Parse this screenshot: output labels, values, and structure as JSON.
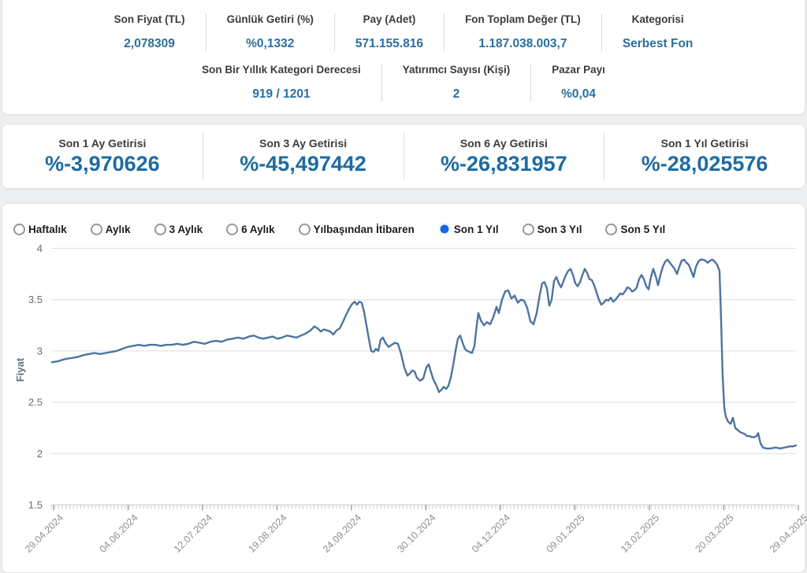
{
  "stats": {
    "row1": [
      {
        "label": "Son Fiyat (TL)",
        "value": "2,078309"
      },
      {
        "label": "Günlük Getiri (%)",
        "value": "%0,1332"
      },
      {
        "label": "Pay (Adet)",
        "value": "571.155.816"
      },
      {
        "label": "Fon Toplam Değer (TL)",
        "value": "1.187.038.003,7"
      },
      {
        "label": "Kategorisi",
        "value": "Serbest Fon"
      }
    ],
    "row2": [
      {
        "label": "Son Bir Yıllık Kategori Derecesi",
        "value": "919 / 1201"
      },
      {
        "label": "Yatırımcı Sayısı (Kişi)",
        "value": "2"
      },
      {
        "label": "Pazar Payı",
        "value": "%0,04"
      }
    ]
  },
  "returns": [
    {
      "label": "Son 1 Ay Getirisi",
      "value": "%-3,970626"
    },
    {
      "label": "Son 3 Ay Getirisi",
      "value": "%-45,497442"
    },
    {
      "label": "Son 6 Ay Getirisi",
      "value": "%-26,831957"
    },
    {
      "label": "Son 1 Yıl Getirisi",
      "value": "%-28,025576"
    }
  ],
  "periods": [
    {
      "label": "Haftalık",
      "selected": false
    },
    {
      "label": "Aylık",
      "selected": false
    },
    {
      "label": "3 Aylık",
      "selected": false
    },
    {
      "label": "6 Aylık",
      "selected": false
    },
    {
      "label": "Yılbaşından İtibaren",
      "selected": false
    },
    {
      "label": "Son 1 Yıl",
      "selected": true
    },
    {
      "label": "Son 3 Yıl",
      "selected": false
    },
    {
      "label": "Son 5 Yıl",
      "selected": false
    }
  ],
  "colors": {
    "accent_value": "#2a6f9e",
    "returns_value": "#1e6ba1",
    "radio_selected": "#1569e6",
    "line": "#4d74a1",
    "grid": "#dcdee0",
    "axis_line": "#c9ced3",
    "y_tick_text": "#6f6e6c",
    "x_label_text": "#8e8e8e",
    "ylabel_text": "#5d7283"
  },
  "chart_data": {
    "type": "line",
    "title": "",
    "xlabel": "",
    "ylabel": "Fiyat",
    "ylim": [
      1.5,
      4
    ],
    "y_ticks": [
      "4",
      "3.5",
      "3",
      "2.5",
      "2",
      "1.5"
    ],
    "y_tick_values": [
      4,
      3.5,
      3,
      2.5,
      2,
      1.5
    ],
    "grid": true,
    "legend": "none",
    "x_tick_labels": [
      "29.04.2024",
      "04.06.2024",
      "12.07.2024",
      "19.08.2024",
      "24.09.2024",
      "30.10.2024",
      "04.12.2024",
      "09.01.2025",
      "13.02.2025",
      "20.03.2025",
      "29.04.2025"
    ],
    "series_name": "Fiyat",
    "points": [
      [
        66,
        2.89
      ],
      [
        74,
        2.9
      ],
      [
        82,
        2.92
      ],
      [
        90,
        2.93
      ],
      [
        98,
        2.94
      ],
      [
        106,
        2.96
      ],
      [
        113,
        2.97
      ],
      [
        120,
        2.98
      ],
      [
        127,
        2.97
      ],
      [
        134,
        2.98
      ],
      [
        141,
        2.99
      ],
      [
        148,
        3.0
      ],
      [
        155,
        3.02
      ],
      [
        162,
        3.04
      ],
      [
        169,
        3.05
      ],
      [
        176,
        3.06
      ],
      [
        183,
        3.05
      ],
      [
        190,
        3.06
      ],
      [
        197,
        3.06
      ],
      [
        204,
        3.05
      ],
      [
        211,
        3.06
      ],
      [
        218,
        3.06
      ],
      [
        225,
        3.07
      ],
      [
        232,
        3.06
      ],
      [
        239,
        3.07
      ],
      [
        246,
        3.09
      ],
      [
        253,
        3.08
      ],
      [
        260,
        3.07
      ],
      [
        267,
        3.09
      ],
      [
        274,
        3.1
      ],
      [
        281,
        3.09
      ],
      [
        288,
        3.11
      ],
      [
        295,
        3.12
      ],
      [
        302,
        3.13
      ],
      [
        309,
        3.12
      ],
      [
        316,
        3.14
      ],
      [
        322,
        3.15
      ],
      [
        328,
        3.13
      ],
      [
        334,
        3.12
      ],
      [
        340,
        3.13
      ],
      [
        346,
        3.14
      ],
      [
        352,
        3.12
      ],
      [
        358,
        3.13
      ],
      [
        364,
        3.15
      ],
      [
        370,
        3.14
      ],
      [
        376,
        3.13
      ],
      [
        382,
        3.15
      ],
      [
        388,
        3.17
      ],
      [
        394,
        3.2
      ],
      [
        399,
        3.24
      ],
      [
        403,
        3.22
      ],
      [
        407,
        3.19
      ],
      [
        411,
        3.21
      ],
      [
        415,
        3.2
      ],
      [
        419,
        3.19
      ],
      [
        423,
        3.16
      ],
      [
        427,
        3.2
      ],
      [
        431,
        3.22
      ],
      [
        435,
        3.28
      ],
      [
        439,
        3.35
      ],
      [
        443,
        3.41
      ],
      [
        447,
        3.46
      ],
      [
        450,
        3.48
      ],
      [
        453,
        3.45
      ],
      [
        456,
        3.48
      ],
      [
        459,
        3.47
      ],
      [
        462,
        3.38
      ],
      [
        465,
        3.25
      ],
      [
        468,
        3.12
      ],
      [
        471,
        3.0
      ],
      [
        474,
        2.99
      ],
      [
        477,
        3.02
      ],
      [
        480,
        3.0
      ],
      [
        483,
        3.11
      ],
      [
        486,
        3.13
      ],
      [
        489,
        3.08
      ],
      [
        493,
        3.04
      ],
      [
        497,
        3.06
      ],
      [
        501,
        3.08
      ],
      [
        505,
        3.07
      ],
      [
        509,
        2.97
      ],
      [
        513,
        2.84
      ],
      [
        517,
        2.76
      ],
      [
        520,
        2.78
      ],
      [
        523,
        2.81
      ],
      [
        526,
        2.8
      ],
      [
        529,
        2.74
      ],
      [
        533,
        2.71
      ],
      [
        537,
        2.73
      ],
      [
        541,
        2.84
      ],
      [
        544,
        2.87
      ],
      [
        547,
        2.79
      ],
      [
        550,
        2.72
      ],
      [
        554,
        2.66
      ],
      [
        557,
        2.6
      ],
      [
        560,
        2.62
      ],
      [
        563,
        2.65
      ],
      [
        566,
        2.63
      ],
      [
        569,
        2.66
      ],
      [
        572,
        2.74
      ],
      [
        575,
        2.86
      ],
      [
        578,
        3.0
      ],
      [
        581,
        3.12
      ],
      [
        584,
        3.15
      ],
      [
        587,
        3.08
      ],
      [
        590,
        3.02
      ],
      [
        593,
        3.0
      ],
      [
        596,
        2.99
      ],
      [
        599,
        2.98
      ],
      [
        602,
        3.05
      ],
      [
        605,
        3.25
      ],
      [
        607,
        3.37
      ],
      [
        610,
        3.3
      ],
      [
        614,
        3.25
      ],
      [
        618,
        3.28
      ],
      [
        622,
        3.26
      ],
      [
        626,
        3.33
      ],
      [
        630,
        3.43
      ],
      [
        633,
        3.37
      ],
      [
        637,
        3.5
      ],
      [
        641,
        3.58
      ],
      [
        645,
        3.59
      ],
      [
        649,
        3.51
      ],
      [
        653,
        3.54
      ],
      [
        657,
        3.47
      ],
      [
        661,
        3.5
      ],
      [
        665,
        3.49
      ],
      [
        669,
        3.42
      ],
      [
        673,
        3.29
      ],
      [
        677,
        3.26
      ],
      [
        681,
        3.37
      ],
      [
        685,
        3.55
      ],
      [
        688,
        3.66
      ],
      [
        691,
        3.67
      ],
      [
        694,
        3.61
      ],
      [
        697,
        3.44
      ],
      [
        700,
        3.5
      ],
      [
        703,
        3.68
      ],
      [
        706,
        3.72
      ],
      [
        709,
        3.66
      ],
      [
        712,
        3.62
      ],
      [
        715,
        3.68
      ],
      [
        718,
        3.74
      ],
      [
        721,
        3.78
      ],
      [
        724,
        3.8
      ],
      [
        727,
        3.74
      ],
      [
        730,
        3.66
      ],
      [
        733,
        3.63
      ],
      [
        736,
        3.67
      ],
      [
        739,
        3.74
      ],
      [
        742,
        3.8
      ],
      [
        745,
        3.76
      ],
      [
        748,
        3.7
      ],
      [
        751,
        3.69
      ],
      [
        754,
        3.64
      ],
      [
        757,
        3.57
      ],
      [
        760,
        3.5
      ],
      [
        763,
        3.45
      ],
      [
        766,
        3.47
      ],
      [
        769,
        3.5
      ],
      [
        772,
        3.49
      ],
      [
        775,
        3.52
      ],
      [
        778,
        3.48
      ],
      [
        781,
        3.5
      ],
      [
        784,
        3.53
      ],
      [
        787,
        3.56
      ],
      [
        790,
        3.55
      ],
      [
        793,
        3.58
      ],
      [
        796,
        3.62
      ],
      [
        799,
        3.61
      ],
      [
        802,
        3.58
      ],
      [
        805,
        3.59
      ],
      [
        808,
        3.62
      ],
      [
        811,
        3.7
      ],
      [
        814,
        3.74
      ],
      [
        817,
        3.7
      ],
      [
        820,
        3.63
      ],
      [
        823,
        3.6
      ],
      [
        826,
        3.72
      ],
      [
        829,
        3.8
      ],
      [
        832,
        3.73
      ],
      [
        835,
        3.64
      ],
      [
        838,
        3.74
      ],
      [
        841,
        3.82
      ],
      [
        844,
        3.87
      ],
      [
        847,
        3.89
      ],
      [
        850,
        3.86
      ],
      [
        853,
        3.83
      ],
      [
        856,
        3.8
      ],
      [
        859,
        3.75
      ],
      [
        862,
        3.82
      ],
      [
        865,
        3.88
      ],
      [
        868,
        3.89
      ],
      [
        871,
        3.86
      ],
      [
        874,
        3.84
      ],
      [
        877,
        3.78
      ],
      [
        880,
        3.72
      ],
      [
        883,
        3.82
      ],
      [
        886,
        3.87
      ],
      [
        889,
        3.89
      ],
      [
        892,
        3.89
      ],
      [
        895,
        3.88
      ],
      [
        898,
        3.86
      ],
      [
        901,
        3.88
      ],
      [
        904,
        3.89
      ],
      [
        907,
        3.87
      ],
      [
        910,
        3.84
      ],
      [
        913,
        3.78
      ],
      [
        915,
        3.3
      ],
      [
        917,
        2.75
      ],
      [
        919,
        2.45
      ],
      [
        921,
        2.36
      ],
      [
        924,
        2.31
      ],
      [
        927,
        2.29
      ],
      [
        930,
        2.35
      ],
      [
        933,
        2.25
      ],
      [
        936,
        2.23
      ],
      [
        939,
        2.21
      ],
      [
        942,
        2.2
      ],
      [
        945,
        2.19
      ],
      [
        948,
        2.17
      ],
      [
        951,
        2.17
      ],
      [
        954,
        2.16
      ],
      [
        957,
        2.16
      ],
      [
        960,
        2.17
      ],
      [
        962,
        2.2
      ],
      [
        965,
        2.1
      ],
      [
        968,
        2.06
      ],
      [
        972,
        2.05
      ],
      [
        978,
        2.05
      ],
      [
        984,
        2.06
      ],
      [
        990,
        2.05
      ],
      [
        996,
        2.06
      ],
      [
        1002,
        2.07
      ],
      [
        1006,
        2.07
      ],
      [
        1010,
        2.08
      ]
    ]
  }
}
